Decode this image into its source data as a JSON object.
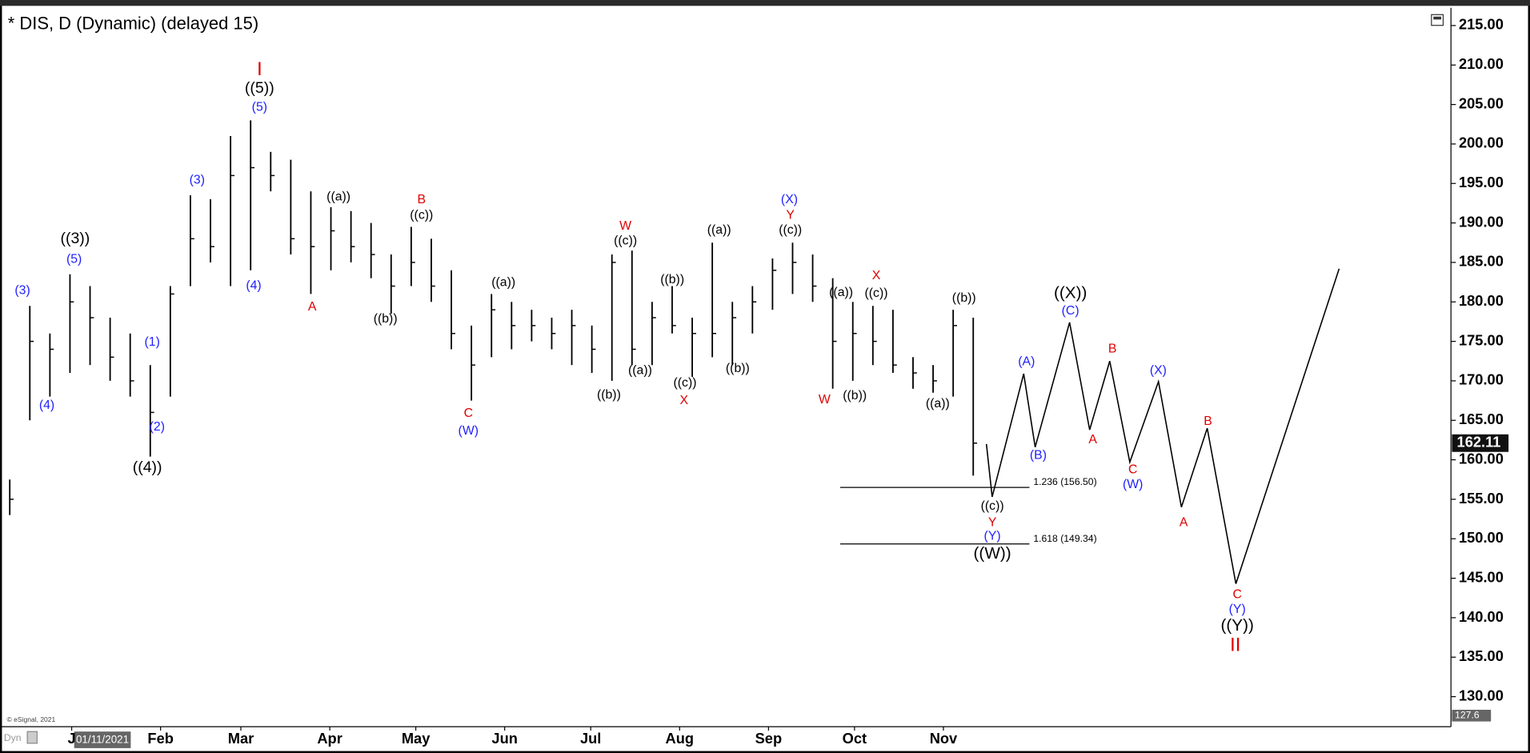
{
  "chart_data": {
    "type": "hlc",
    "title": "* DIS, D (Dynamic) (delayed 15)",
    "copyright": "© eSignal, 2021",
    "cursor_date": "01/11/2021",
    "mode_label": "Dyn",
    "xlim": [
      "2020-12-07",
      "2022-04-27"
    ],
    "ylim": [
      126.2,
      217
    ],
    "xticks": [
      {
        "value": "2021-01-01",
        "label": "J"
      },
      {
        "value": "2021-02-01",
        "label": "Feb"
      },
      {
        "value": "2021-03-01",
        "label": "Mar"
      },
      {
        "value": "2021-04-01",
        "label": "Apr"
      },
      {
        "value": "2021-05-01",
        "label": "May"
      },
      {
        "value": "2021-06-01",
        "label": "Jun"
      },
      {
        "value": "2021-07-01",
        "label": "Jul"
      },
      {
        "value": "2021-08-01",
        "label": "Aug"
      },
      {
        "value": "2021-09-01",
        "label": "Sep"
      },
      {
        "value": "2021-10-01",
        "label": "Oct"
      },
      {
        "value": "2021-11-01",
        "label": "Nov"
      }
    ],
    "yticks": [
      {
        "value": 130,
        "label": "130.00"
      },
      {
        "value": 135,
        "label": "135.00"
      },
      {
        "value": 140,
        "label": "140.00"
      },
      {
        "value": 145,
        "label": "145.00"
      },
      {
        "value": 150,
        "label": "150.00"
      },
      {
        "value": 155,
        "label": "155.00"
      },
      {
        "value": 160,
        "label": "160.00"
      },
      {
        "value": 165,
        "label": "165.00"
      },
      {
        "value": 170,
        "label": "170.00"
      },
      {
        "value": 175,
        "label": "175.00"
      },
      {
        "value": 180,
        "label": "180.00"
      },
      {
        "value": 185,
        "label": "185.00"
      },
      {
        "value": 190,
        "label": "190.00"
      },
      {
        "value": 195,
        "label": "195.00"
      },
      {
        "value": 200,
        "label": "200.00"
      },
      {
        "value": 205,
        "label": "205.00"
      },
      {
        "value": 210,
        "label": "210.00"
      },
      {
        "value": 215,
        "label": "215.00"
      }
    ],
    "last_price": 162.11,
    "cursor_price": 127.6,
    "x": [
      "2020-12-07",
      "2020-12-14",
      "2020-12-21",
      "2020-12-28",
      "2021-01-04",
      "2021-01-11",
      "2021-01-18",
      "2021-01-25",
      "2021-02-01",
      "2021-02-08",
      "2021-02-15",
      "2021-02-22",
      "2021-03-01",
      "2021-03-08",
      "2021-03-15",
      "2021-03-22",
      "2021-03-29",
      "2021-04-05",
      "2021-04-12",
      "2021-04-19",
      "2021-04-26",
      "2021-05-03",
      "2021-05-10",
      "2021-05-17",
      "2021-05-24",
      "2021-05-31",
      "2021-06-07",
      "2021-06-14",
      "2021-06-21",
      "2021-06-28",
      "2021-07-05",
      "2021-07-12",
      "2021-07-19",
      "2021-07-26",
      "2021-08-02",
      "2021-08-09",
      "2021-08-16",
      "2021-08-23",
      "2021-08-30",
      "2021-09-06",
      "2021-09-13",
      "2021-09-20",
      "2021-09-27",
      "2021-10-04",
      "2021-10-11",
      "2021-10-18",
      "2021-10-25",
      "2021-11-01",
      "2021-11-08"
    ],
    "high": [
      157.5,
      179.5,
      176,
      183.5,
      182,
      178,
      176,
      172,
      182,
      193.5,
      193,
      201,
      203,
      199,
      198,
      194,
      192,
      191.5,
      190,
      186,
      189.5,
      188,
      184,
      177,
      181,
      180,
      179,
      178,
      179,
      177,
      186,
      186.5,
      180,
      182,
      178,
      187.5,
      180,
      182,
      185.5,
      187.5,
      186,
      183,
      180,
      179.5,
      179,
      173,
      172,
      179,
      178
    ],
    "low": [
      153,
      165,
      168,
      171,
      172,
      170,
      168,
      160.4,
      168,
      182,
      185,
      182,
      184,
      194,
      186,
      181,
      184,
      185,
      183,
      178.5,
      182,
      180,
      174,
      167.5,
      173,
      174,
      175,
      174,
      172,
      171,
      170,
      172,
      172,
      176,
      170.5,
      173,
      172,
      176,
      179,
      181,
      180,
      169,
      170,
      172,
      171,
      169,
      168.5,
      168,
      158
    ],
    "close": [
      155,
      175,
      174,
      180,
      178,
      173,
      170,
      166,
      181,
      188,
      187,
      196,
      197,
      196,
      188,
      187,
      189,
      187,
      186,
      182,
      185,
      182,
      176,
      172,
      179,
      177,
      177,
      176,
      177,
      174,
      185,
      174,
      178,
      177,
      176,
      176,
      178,
      180,
      184,
      185,
      182,
      175,
      176,
      175,
      172,
      171,
      170,
      177,
      162.11
    ],
    "bar_color": "#000000",
    "projection": {
      "color": "#000000",
      "x": [
        "2021-11-16",
        "2021-11-18",
        "2021-11-29",
        "2021-12-03",
        "2021-12-15",
        "2021-12-22",
        "2021-12-29",
        "2022-01-05",
        "2022-01-15",
        "2022-01-23",
        "2022-02-01",
        "2022-02-11",
        "2022-03-19"
      ],
      "values": [
        162.0,
        155.3,
        170.9,
        161.6,
        177.4,
        163.8,
        172.5,
        159.7,
        169.9,
        154.0,
        164.0,
        144.3,
        184.2
      ]
    },
    "levels": [
      {
        "label": "1.236 (156.50)",
        "value": 156.5,
        "start": "2021-09-26",
        "end": "2021-12-01"
      },
      {
        "label": "1.618 (149.34)",
        "value": 149.34,
        "start": "2021-09-26",
        "end": "2021-12-01"
      }
    ],
    "annotations": [
      {
        "text": "(3)",
        "color": "#1f1fff"
      },
      {
        "text": "(4)",
        "color": "#1f1fff"
      },
      {
        "text": "((3))",
        "color": "#000000"
      },
      {
        "text": "(5)",
        "color": "#1f1fff"
      },
      {
        "text": "(1)",
        "color": "#1f1fff"
      },
      {
        "text": "(2)",
        "color": "#1f1fff"
      },
      {
        "text": "((4))",
        "color": "#000000"
      },
      {
        "text": "(3)",
        "color": "#1f1fff"
      },
      {
        "text": "I",
        "color": "#e00000"
      },
      {
        "text": "((5))",
        "color": "#000000"
      },
      {
        "text": "(5)",
        "color": "#1f1fff"
      },
      {
        "text": "(4)",
        "color": "#1f1fff"
      },
      {
        "text": "A",
        "color": "#e00000"
      },
      {
        "text": "((a))",
        "color": "#000000"
      },
      {
        "text": "B",
        "color": "#e00000"
      },
      {
        "text": "((c))",
        "color": "#000000"
      },
      {
        "text": "((b))",
        "color": "#000000"
      },
      {
        "text": "((a))",
        "color": "#000000"
      },
      {
        "text": "C",
        "color": "#e00000"
      },
      {
        "text": "(W)",
        "color": "#1f1fff"
      },
      {
        "text": "((b))",
        "color": "#000000"
      },
      {
        "text": "W",
        "color": "#e00000"
      },
      {
        "text": "((c))",
        "color": "#000000"
      },
      {
        "text": "((a))",
        "color": "#000000"
      },
      {
        "text": "((b))",
        "color": "#000000"
      },
      {
        "text": "((c))",
        "color": "#000000"
      },
      {
        "text": "X",
        "color": "#e00000"
      },
      {
        "text": "((a))",
        "color": "#000000"
      },
      {
        "text": "((b))",
        "color": "#000000"
      },
      {
        "text": "(X)",
        "color": "#1f1fff"
      },
      {
        "text": "Y",
        "color": "#e00000"
      },
      {
        "text": "((c))",
        "color": "#000000"
      },
      {
        "text": "W",
        "color": "#e00000"
      },
      {
        "text": "((a))",
        "color": "#000000"
      },
      {
        "text": "((b))",
        "color": "#000000"
      },
      {
        "text": "X",
        "color": "#e00000"
      },
      {
        "text": "((c))",
        "color": "#000000"
      },
      {
        "text": "((b))",
        "color": "#000000"
      },
      {
        "text": "((a))",
        "color": "#000000"
      },
      {
        "text": "((c))",
        "color": "#000000"
      },
      {
        "text": "Y",
        "color": "#e00000"
      },
      {
        "text": "(Y)",
        "color": "#1f1fff"
      },
      {
        "text": "((W))",
        "color": "#000000"
      },
      {
        "text": "((X))",
        "color": "#000000"
      },
      {
        "text": "(C)",
        "color": "#1f1fff"
      },
      {
        "text": "(A)",
        "color": "#1f1fff"
      },
      {
        "text": "(B)",
        "color": "#1f1fff"
      },
      {
        "text": "B",
        "color": "#e00000"
      },
      {
        "text": "A",
        "color": "#e00000"
      },
      {
        "text": "(X)",
        "color": "#1f1fff"
      },
      {
        "text": "C",
        "color": "#e00000"
      },
      {
        "text": "(W)",
        "color": "#1f1fff"
      },
      {
        "text": "A",
        "color": "#e00000"
      },
      {
        "text": "B",
        "color": "#e00000"
      },
      {
        "text": "C",
        "color": "#e00000"
      },
      {
        "text": "(Y)",
        "color": "#1f1fff"
      },
      {
        "text": "((Y))",
        "color": "#000000"
      },
      {
        "text": "II",
        "color": "#e00000"
      }
    ]
  }
}
